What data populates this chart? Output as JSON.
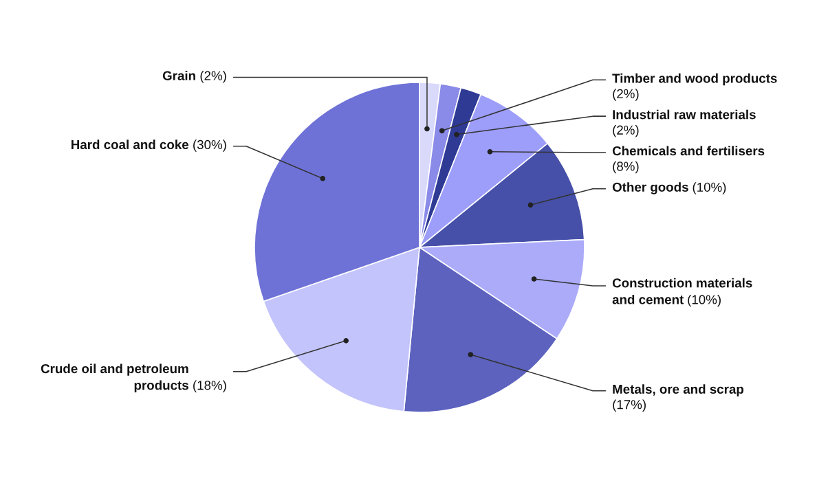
{
  "chart_data": {
    "type": "pie",
    "categories": [
      "Grain",
      "Timber and wood products",
      "Industrial raw materials",
      "Chemicals and fertilisers",
      "Other goods",
      "Construction materials and cement",
      "Metals, ore and scrap",
      "Crude oil and petroleum products",
      "Hard coal and coke"
    ],
    "values": [
      2,
      2,
      2,
      8,
      10,
      10,
      17,
      18,
      30
    ],
    "value_labels": [
      "(2%)",
      "(2%)",
      "(2%)",
      "(8%)",
      "(10%)",
      "(10%)",
      "(17%)",
      "(18%)",
      "(30%)"
    ],
    "colors": [
      "#d9d9fb",
      "#8a8ae8",
      "#2e3a94",
      "#9d9dfa",
      "#4650a8",
      "#ababfa",
      "#5c62be",
      "#c4c4fc",
      "#6e72d6"
    ],
    "legend": false
  }
}
